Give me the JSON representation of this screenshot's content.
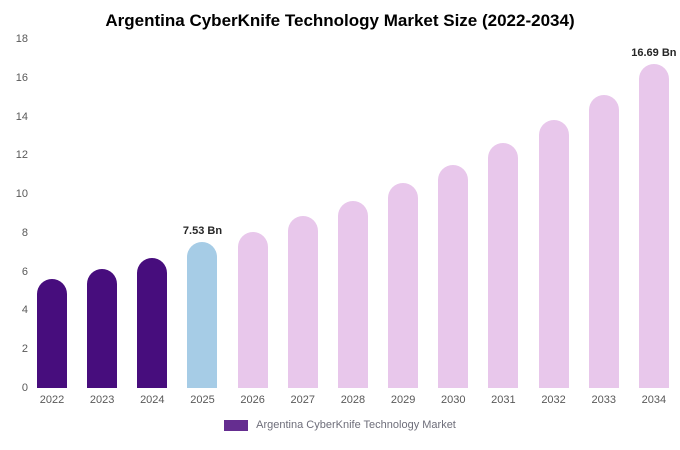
{
  "title": "Argentina CyberKnife Technology Market Size (2022-2034)",
  "legend": {
    "label": "Argentina CyberKnife Technology Market",
    "swatch_color": "#652d90"
  },
  "colors": {
    "dark_purple_bar": "#470d7d",
    "highlight_blue_bar": "#a6cce6",
    "forecast_pink_bar": "#e8c7eb",
    "axis_text": "#595959",
    "label_text": "#262626"
  },
  "chart_data": {
    "type": "bar",
    "title": "Argentina CyberKnife Technology Market Size (2022-2034)",
    "categories": [
      "2022",
      "2023",
      "2024",
      "2025",
      "2026",
      "2027",
      "2028",
      "2029",
      "2030",
      "2031",
      "2032",
      "2033",
      "2034"
    ],
    "values": [
      5.6,
      6.15,
      6.7,
      7.53,
      8.05,
      8.85,
      9.65,
      10.55,
      11.5,
      12.65,
      13.8,
      15.1,
      16.69
    ],
    "bar_colors": [
      "#470d7d",
      "#470d7d",
      "#470d7d",
      "#a6cce6",
      "#e8c7eb",
      "#e8c7eb",
      "#e8c7eb",
      "#e8c7eb",
      "#e8c7eb",
      "#e8c7eb",
      "#e8c7eb",
      "#e8c7eb",
      "#e8c7eb"
    ],
    "annotations": [
      {
        "index": 3,
        "text": "7.53 Bn"
      },
      {
        "index": 12,
        "text": "16.69 Bn"
      }
    ],
    "xlabel": "",
    "ylabel": "",
    "ylim": [
      0,
      18
    ],
    "yticks": [
      0,
      2,
      4,
      6,
      8,
      10,
      12,
      14,
      16,
      18
    ],
    "grid": false,
    "legend_position": "bottom",
    "unit": "Bn"
  }
}
